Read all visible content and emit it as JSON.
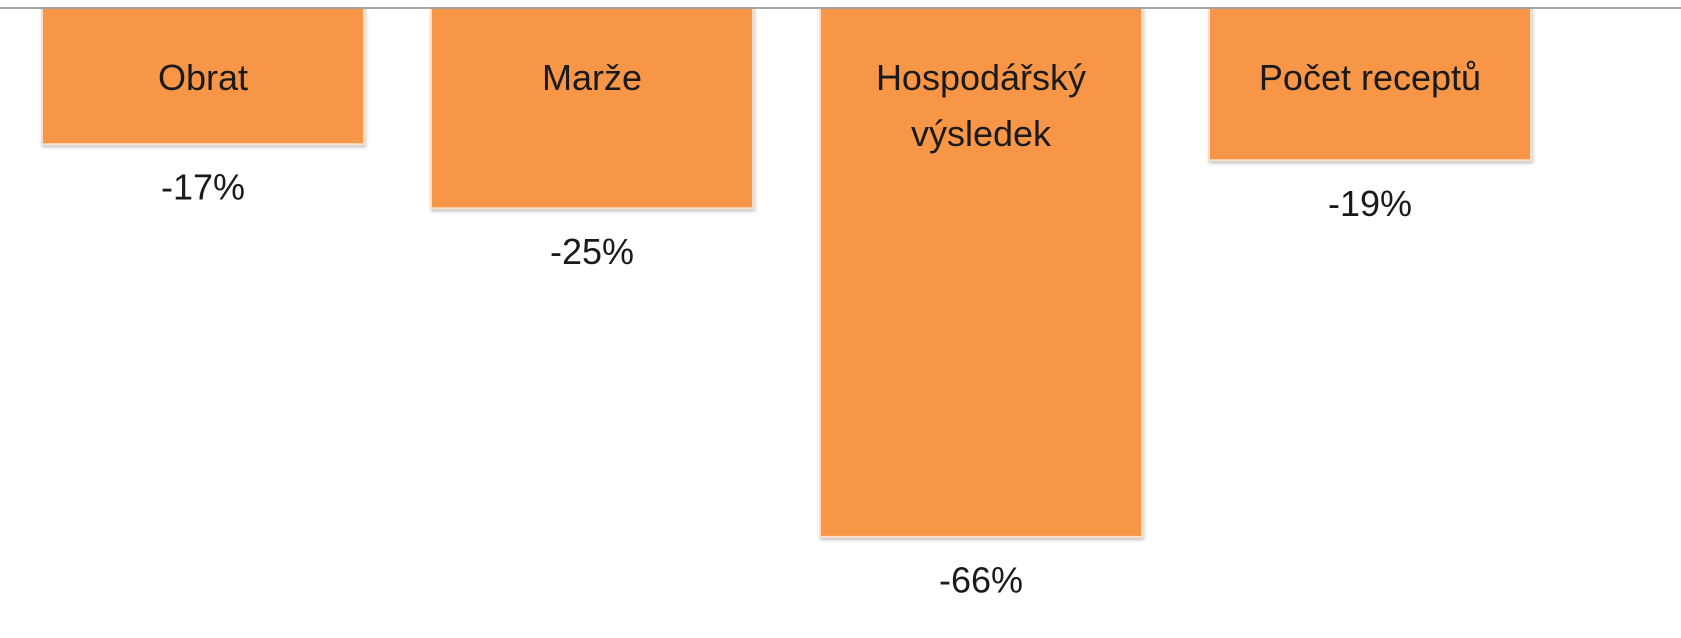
{
  "chart_data": {
    "type": "bar",
    "categories": [
      "Obrat",
      "Marže",
      "Hospodářský výsledek",
      "Počet receptů"
    ],
    "values": [
      -17,
      -25,
      -66,
      -19
    ],
    "value_labels": [
      "-17%",
      "-25%",
      "-66%",
      "-19%"
    ],
    "color": "#f79646",
    "ylim": [
      -75,
      0
    ]
  }
}
